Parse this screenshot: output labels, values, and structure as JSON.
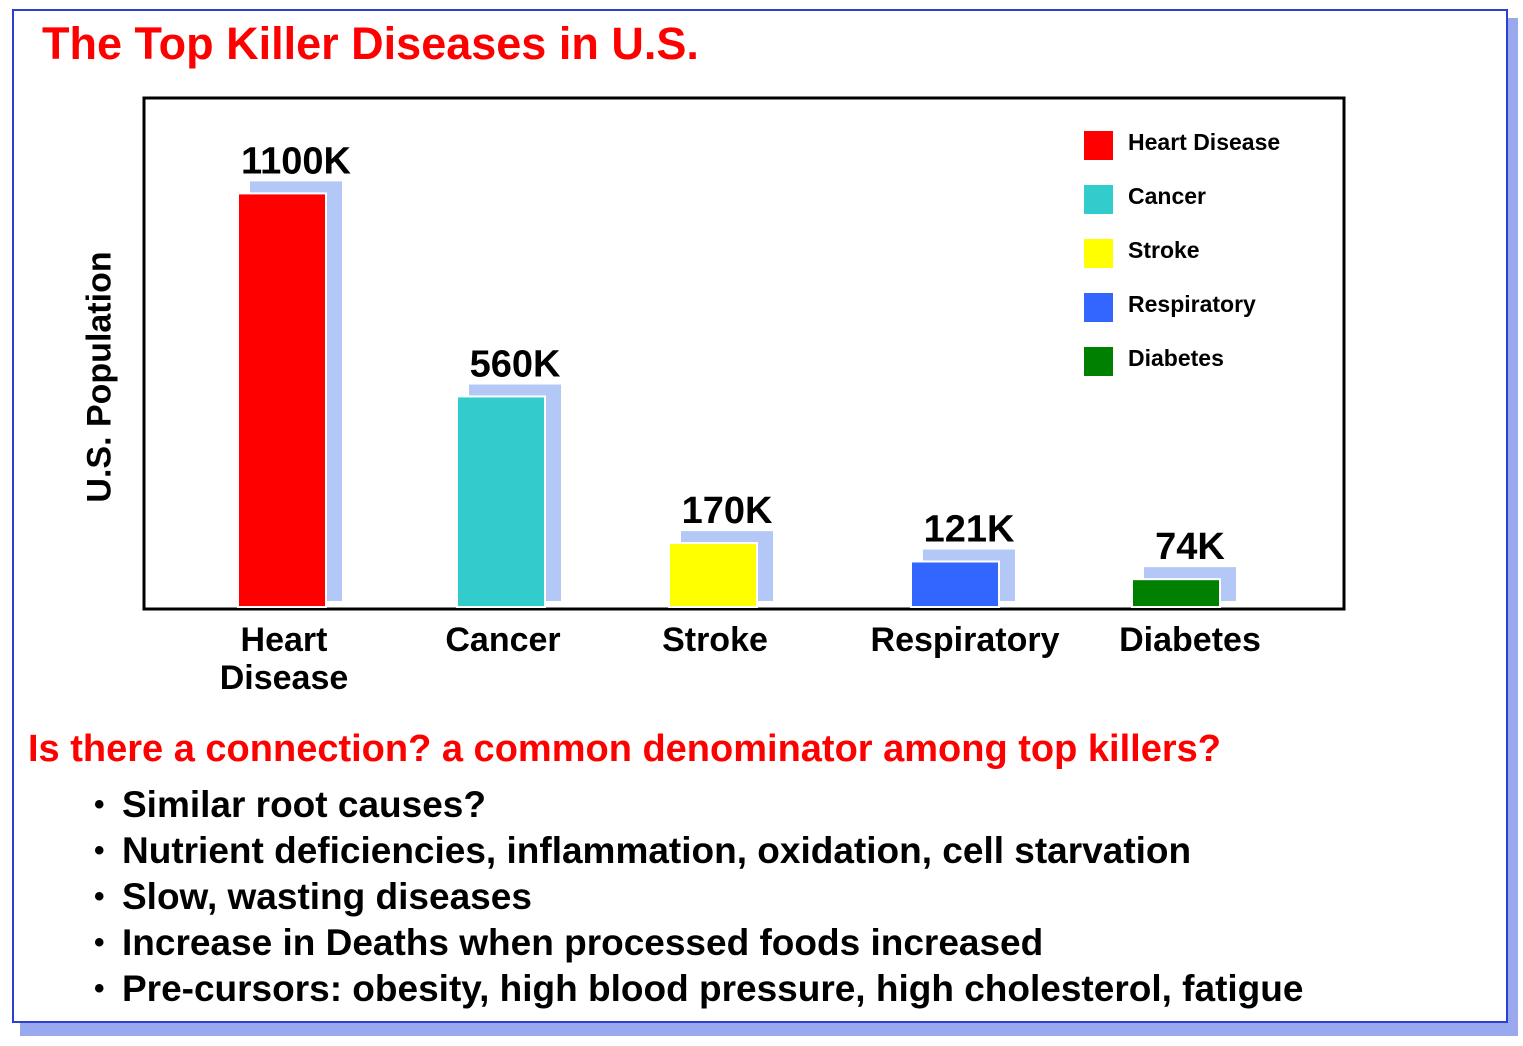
{
  "slide": {
    "title": "The Top Killer Diseases in U.S.",
    "question": "Is there a connection? a common denominator among top killers?",
    "bullets": [
      "Similar root causes?",
      "Nutrient deficiencies, inflammation, oxidation, cell starvation",
      "Slow, wasting diseases",
      "Increase in Deaths when processed foods increased",
      "Pre-cursors: obesity, high blood pressure, high cholesterol, fatigue"
    ]
  },
  "colors": {
    "title_red": "#ff0000",
    "shadow": "#b4c8f8"
  },
  "chart_data": {
    "type": "bar",
    "title": "",
    "xlabel": "",
    "ylabel": "U.S. Population",
    "ylim": [
      0,
      1250
    ],
    "categories": [
      {
        "name": "Heart Disease",
        "lines": [
          "Heart",
          "Disease"
        ]
      },
      {
        "name": "Cancer",
        "lines": [
          "Cancer"
        ]
      },
      {
        "name": "Stroke",
        "lines": [
          "Stroke"
        ]
      },
      {
        "name": "Respiratory",
        "lines": [
          "Respiratory"
        ]
      },
      {
        "name": "Diabetes",
        "lines": [
          "Diabetes"
        ]
      }
    ],
    "values": [
      1100,
      560,
      170,
      121,
      74
    ],
    "value_labels": [
      "1100K",
      "560K",
      "170K",
      "121K",
      "74K"
    ],
    "unit": "K",
    "bar_colors": [
      "#ff0000",
      "#33cccc",
      "#ffff00",
      "#3366ff",
      "#008000"
    ],
    "legend": {
      "position": "top-right",
      "entries": [
        {
          "label": "Heart Disease",
          "color": "#ff0000"
        },
        {
          "label": "Cancer",
          "color": "#33cccc"
        },
        {
          "label": "Stroke",
          "color": "#ffff00"
        },
        {
          "label": "Respiratory",
          "color": "#3366ff"
        },
        {
          "label": "Diabetes",
          "color": "#008000"
        }
      ]
    },
    "grid": false
  }
}
